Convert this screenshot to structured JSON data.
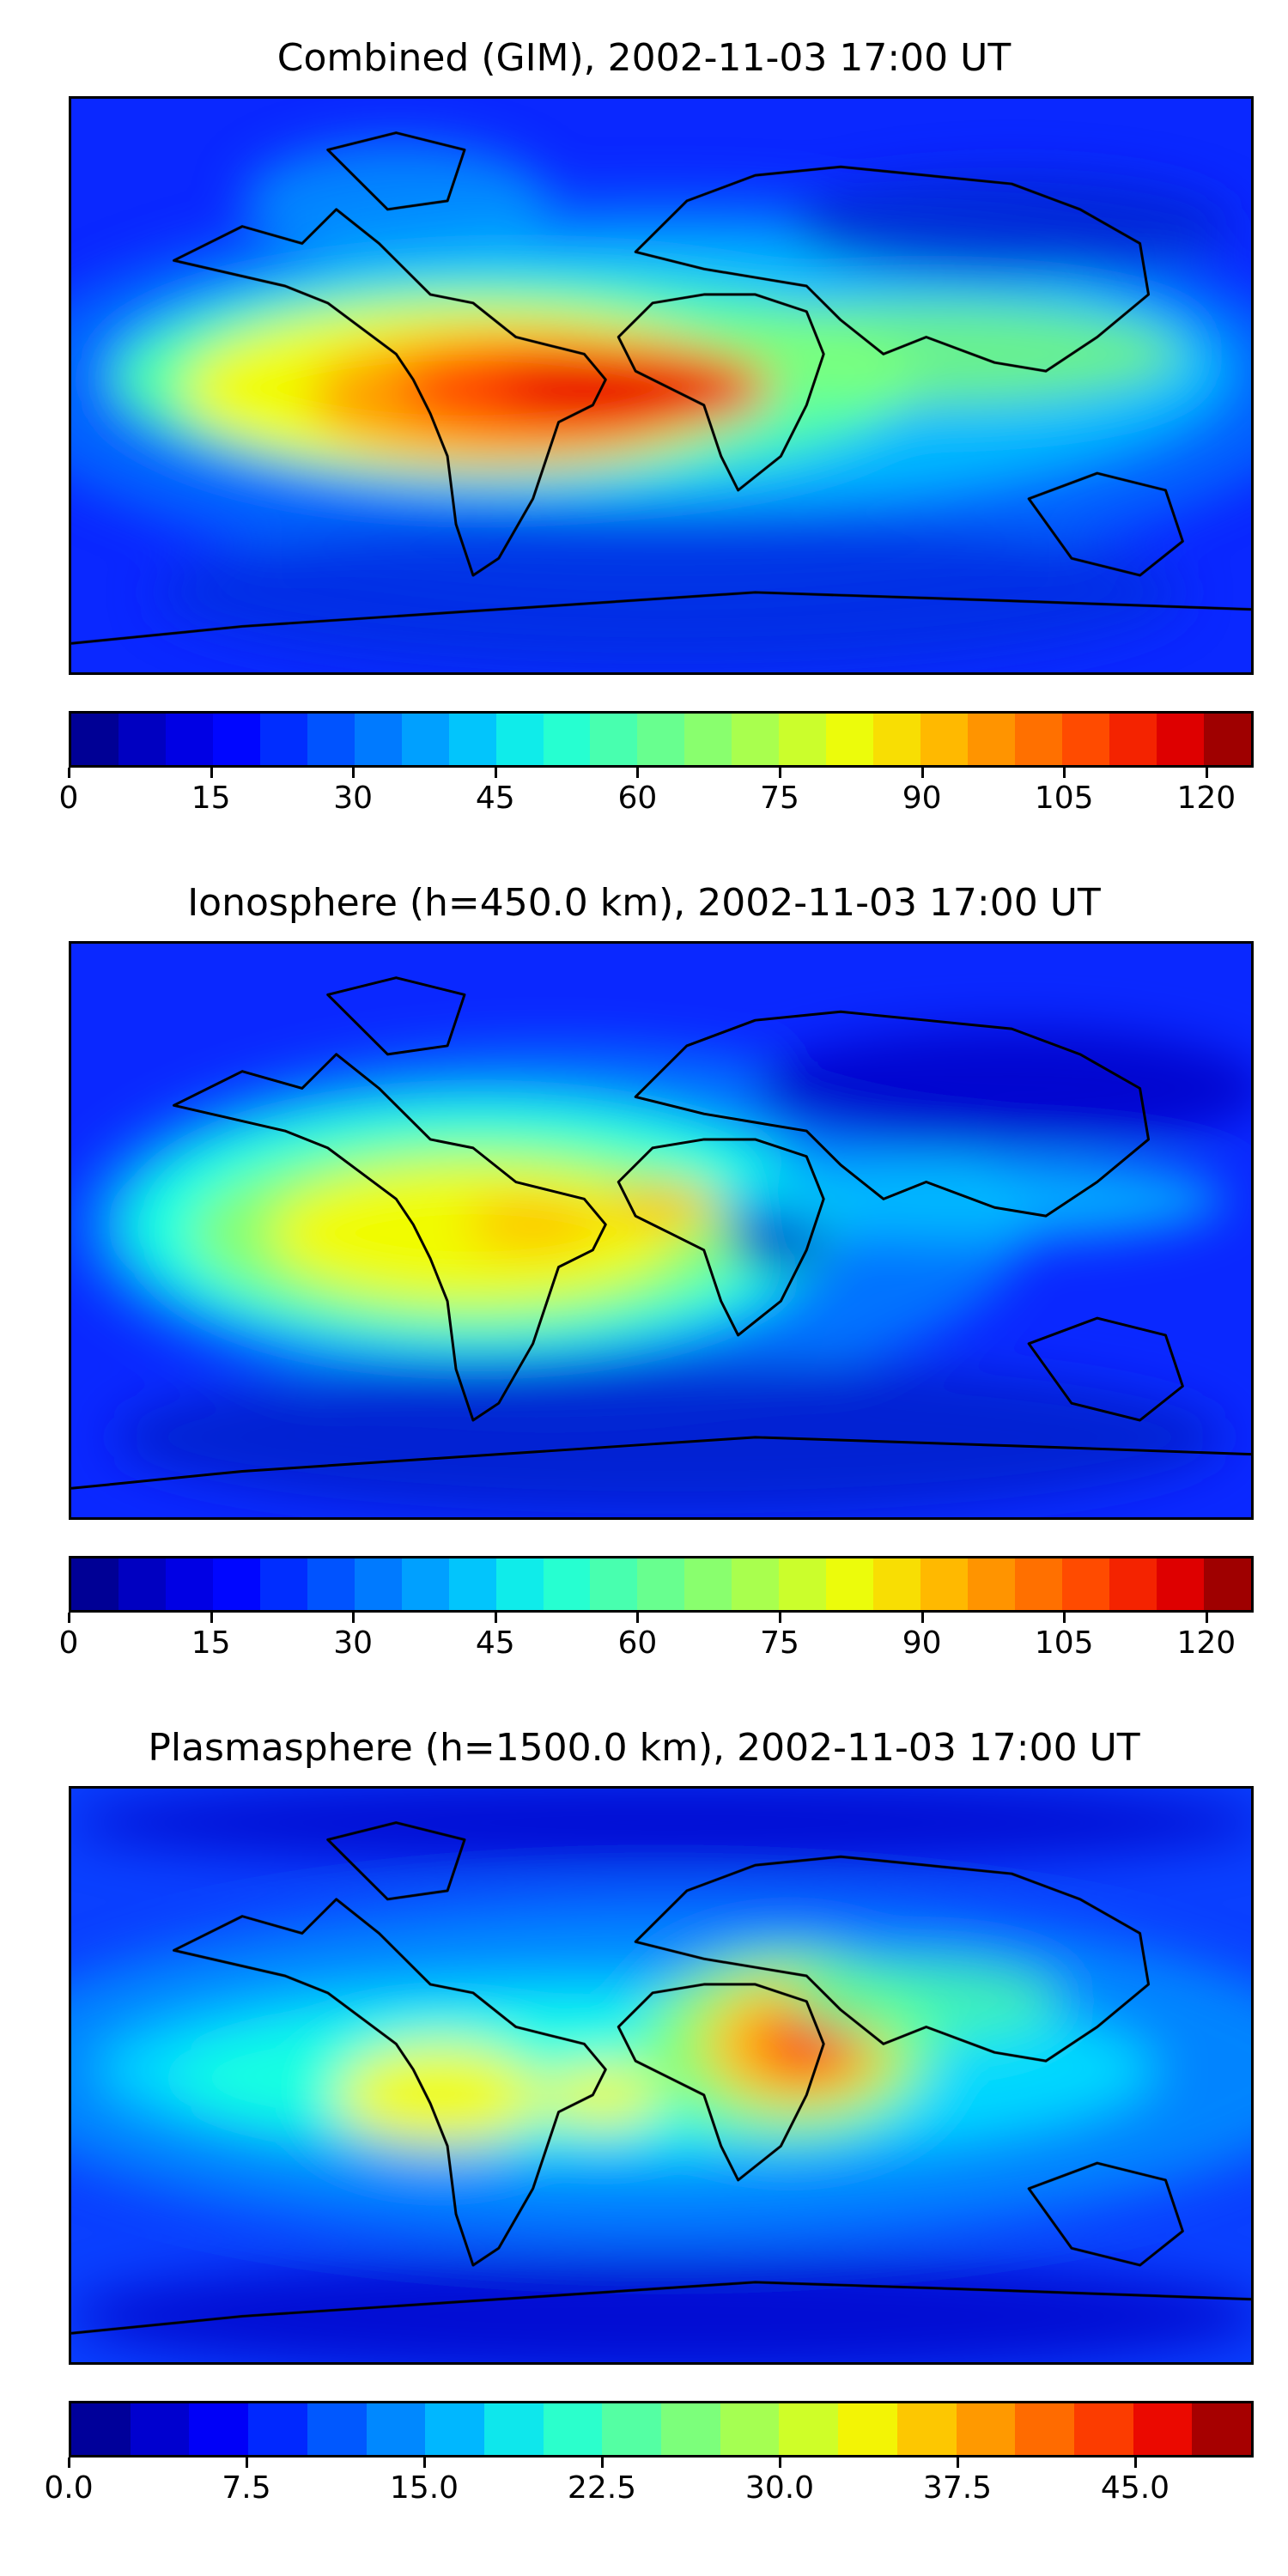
{
  "panels": [
    {
      "title": "Combined (GIM), 2002-11-03 17:00 UT",
      "colorbar": {
        "vmin": 0,
        "vmax": 125,
        "levels": 25,
        "tick_values": [
          0,
          15,
          30,
          45,
          60,
          75,
          90,
          105,
          120
        ],
        "tick_labels": [
          "0",
          "15",
          "30",
          "45",
          "60",
          "75",
          "90",
          "105",
          "120"
        ]
      },
      "peak_region": "South America / tropical Atlantic"
    },
    {
      "title": "Ionosphere  (h=450.0 km), 2002-11-03 17:00 UT",
      "colorbar": {
        "vmin": 0,
        "vmax": 125,
        "levels": 25,
        "tick_values": [
          0,
          15,
          30,
          45,
          60,
          75,
          90,
          105,
          120
        ],
        "tick_labels": [
          "0",
          "15",
          "30",
          "45",
          "60",
          "75",
          "90",
          "105",
          "120"
        ]
      },
      "peak_region": "South America / West Africa"
    },
    {
      "title": "Plasmasphere (h=1500.0 km), 2002-11-03 17:00 UT",
      "colorbar": {
        "vmin": 0,
        "vmax": 50,
        "levels": 20,
        "tick_values": [
          0,
          7.5,
          15,
          22.5,
          30,
          37.5,
          45
        ],
        "tick_labels": [
          "0.0",
          "7.5",
          "15.0",
          "22.5",
          "30.0",
          "37.5",
          "45.0"
        ]
      },
      "peak_region": "Horn of Africa"
    }
  ],
  "colors": {
    "jet": [
      "#00007f",
      "#0000c8",
      "#0000ff",
      "#0040ff",
      "#0080ff",
      "#00bfff",
      "#16ffe1",
      "#4dffaa",
      "#83ff74",
      "#baff3d",
      "#f1fc06",
      "#ffbf00",
      "#ff8200",
      "#ff4500",
      "#e80000",
      "#7f0000"
    ],
    "coastline": "#000000"
  }
}
